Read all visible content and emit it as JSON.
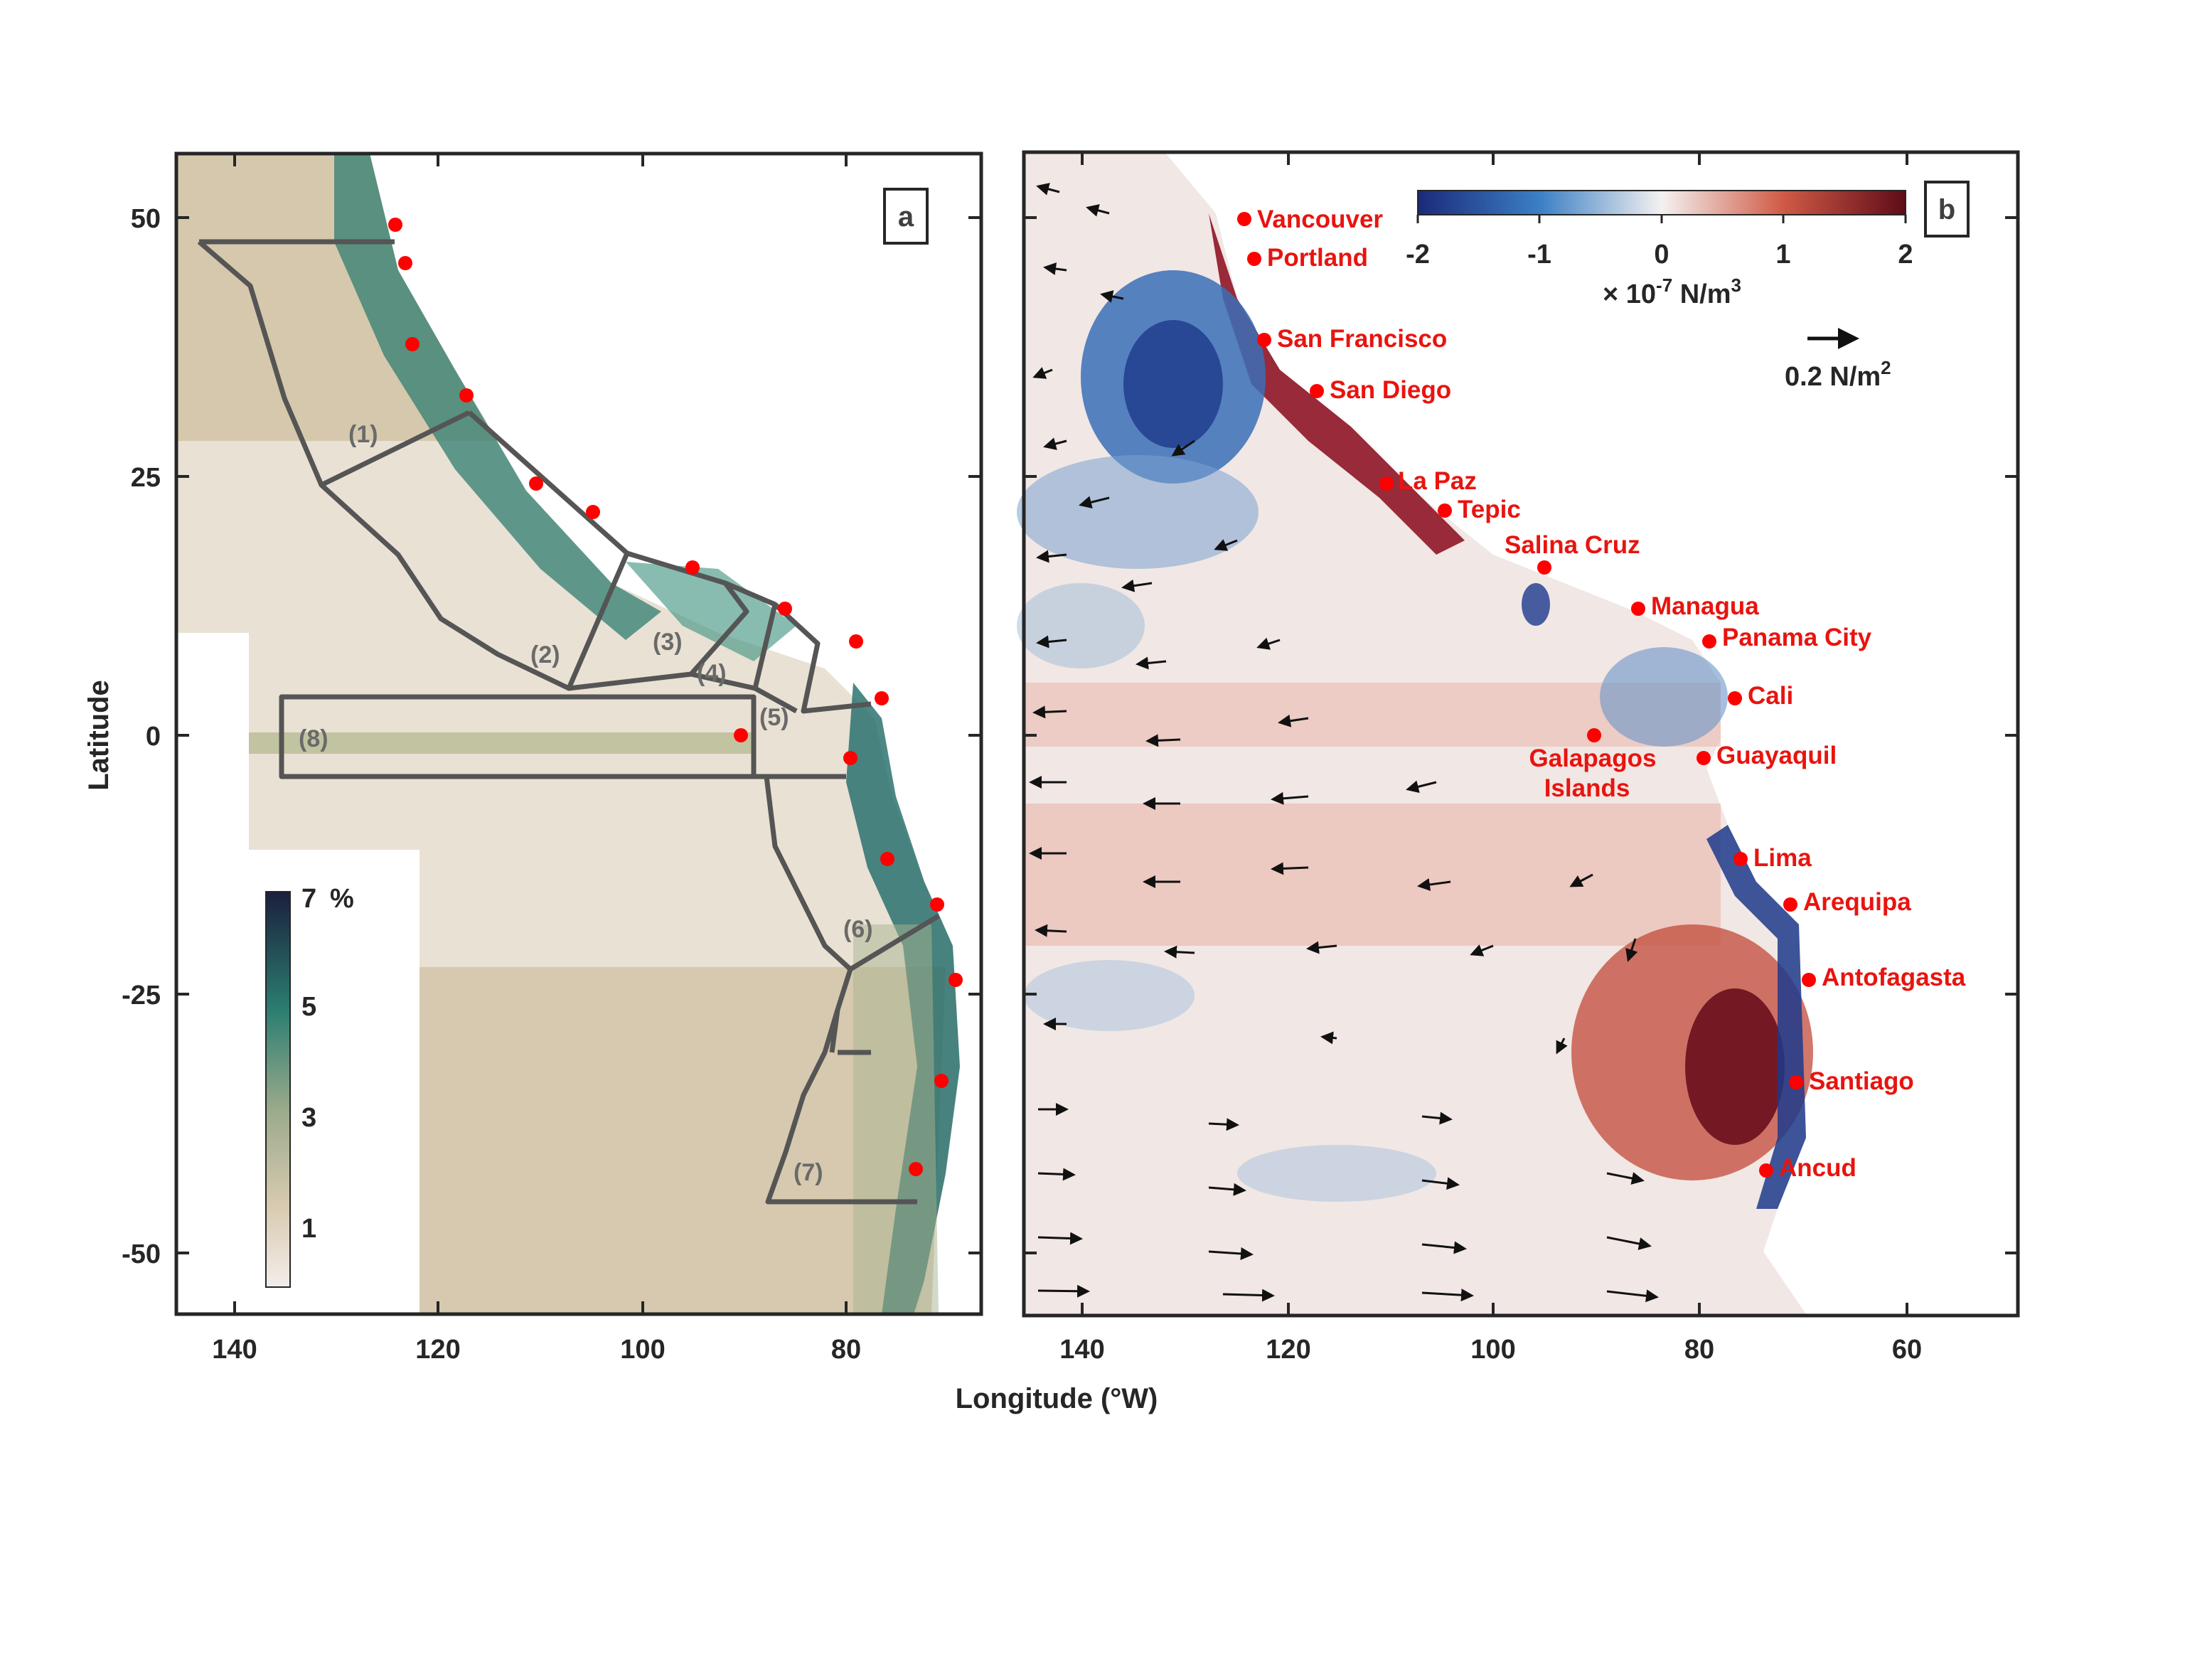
{
  "panel_a": {
    "label": "a",
    "y_ticks": [
      "50",
      "25",
      "0",
      "-25",
      "-50"
    ],
    "x_ticks": [
      "140",
      "120",
      "100",
      "80"
    ],
    "ylabel": "Latitude",
    "colorbar": {
      "ticks": [
        "7",
        "5",
        "3",
        "1"
      ],
      "unit": "%",
      "colors": [
        "#1b1f3d",
        "#1e6f6a",
        "#3f9a84",
        "#c7b896",
        "#f3eeea"
      ]
    },
    "regions": [
      "(1)",
      "(2)",
      "(3)",
      "(4)",
      "(5)",
      "(6)",
      "(7)",
      "(8)"
    ]
  },
  "panel_b": {
    "label": "b",
    "x_ticks": [
      "140",
      "120",
      "100",
      "80",
      "60"
    ],
    "colorbar": {
      "ticks": [
        "-2",
        "-1",
        "0",
        "1",
        "2"
      ],
      "unit_prefix": "× 10",
      "unit_exp": "-7",
      "unit_suffix": " N/m",
      "unit_exp2": "3",
      "colors": [
        "#1b2a7a",
        "#3b7fc4",
        "#f4f1f0",
        "#cf5a45",
        "#5e0c18"
      ]
    },
    "vector_ref": {
      "value": "0.2 N/m",
      "exp": "2"
    },
    "cities": [
      "Vancouver",
      "Portland",
      "San Francisco",
      "San Diego",
      "La Paz",
      "Tepic",
      "Salina Cruz",
      "Managua",
      "Panama City",
      "Cali",
      "Galapagos",
      "Islands",
      "Guayaquil",
      "Lima",
      "Arequipa",
      "Antofagasta",
      "Santiago",
      "Ancud"
    ]
  },
  "xlabel": "Longitude (°W)",
  "colors": {
    "city_marker": "#ff0000",
    "frame": "#262626",
    "region_box": "#555555"
  }
}
